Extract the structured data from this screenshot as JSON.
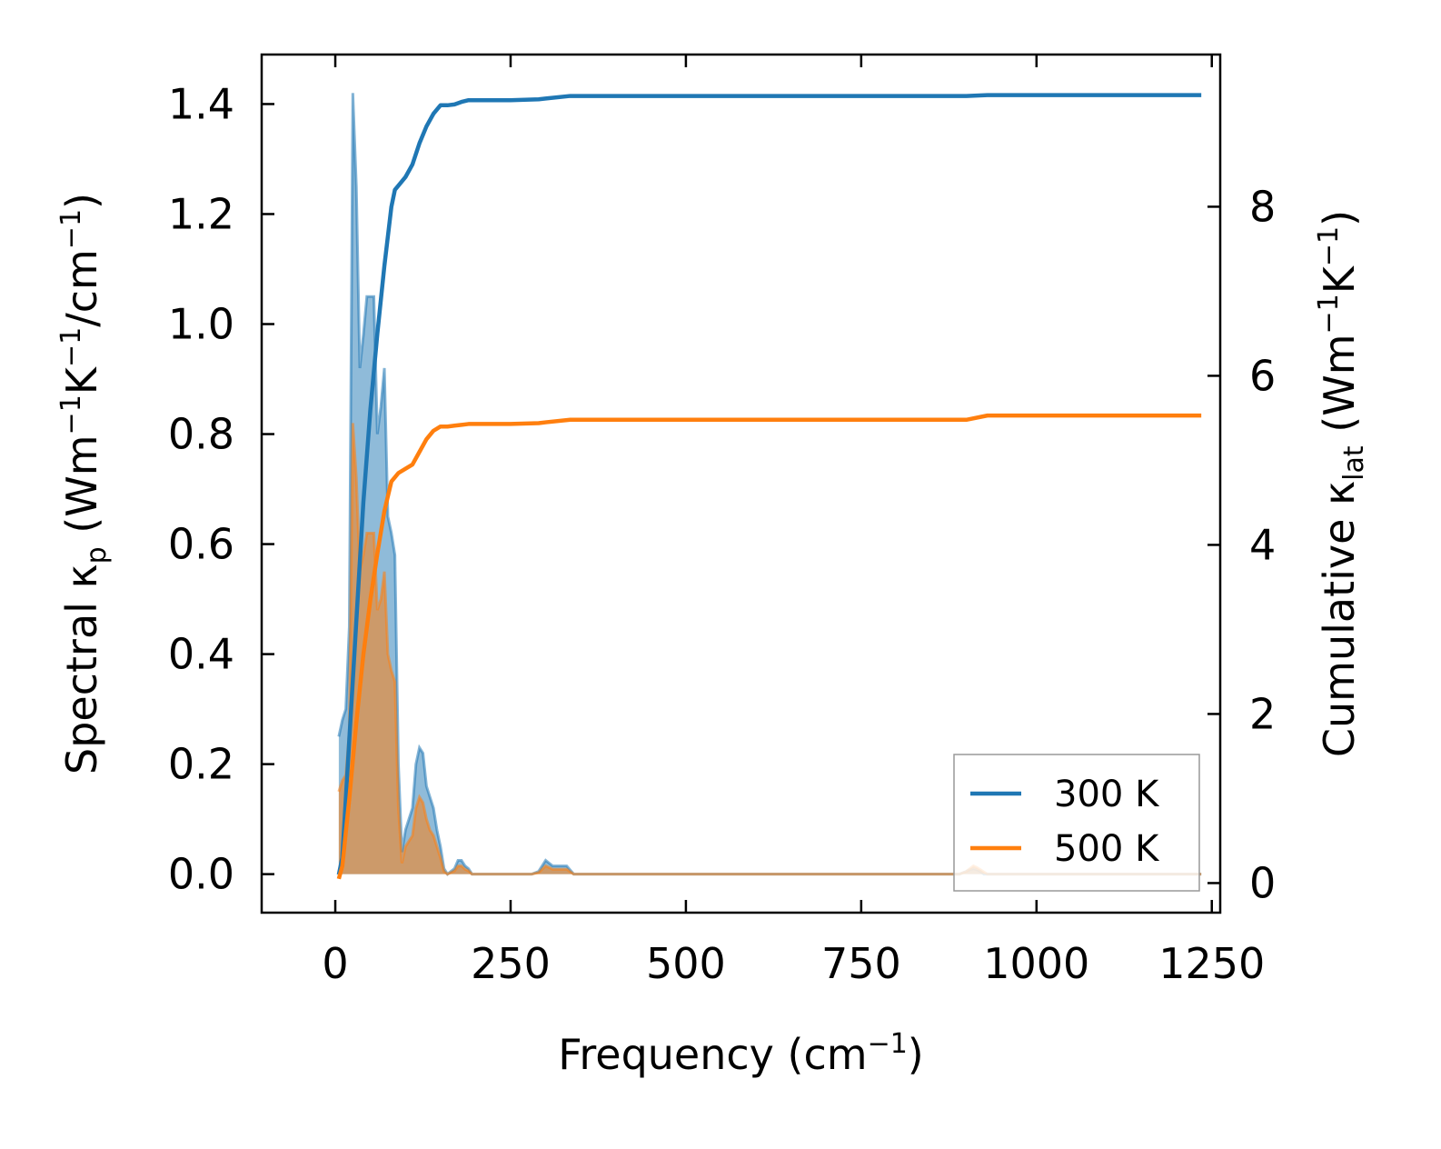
{
  "chart_data": {
    "type": "line",
    "x_axis": {
      "label": "Frequency (cm",
      "label_sup": "−1",
      "label_tail": ")",
      "lim": [
        -105,
        1262
      ],
      "ticks": [
        0,
        250,
        500,
        750,
        1000,
        1250
      ],
      "tick_labels": [
        "0",
        "250",
        "500",
        "750",
        "1000",
        "1250"
      ]
    },
    "y_left": {
      "label_parts": [
        "Spectral κ",
        "p",
        " (Wm",
        "−1",
        "K",
        "−1",
        "/cm",
        "−1",
        ")"
      ],
      "lim": [
        -0.07,
        1.49
      ],
      "ticks": [
        0.0,
        0.2,
        0.4,
        0.6,
        0.8,
        1.0,
        1.2,
        1.4
      ],
      "tick_labels": [
        "0.0",
        "0.2",
        "0.4",
        "0.6",
        "0.8",
        "1.0",
        "1.2",
        "1.4"
      ]
    },
    "y_right": {
      "label_parts": [
        "Cumulative κ",
        "lat",
        " (Wm",
        "−1",
        "K",
        "−1",
        ")"
      ],
      "lim": [
        -0.35,
        9.8
      ],
      "ticks": [
        0,
        2,
        4,
        6,
        8
      ],
      "tick_labels": [
        "0",
        "2",
        "4",
        "6",
        "8"
      ]
    },
    "grid": false,
    "legend_position": "bottom-right",
    "series": [
      {
        "name": "300 K",
        "color": "#1f77b4",
        "spectral": {
          "x": [
            5,
            10,
            15,
            20,
            25,
            30,
            35,
            40,
            45,
            50,
            55,
            60,
            65,
            70,
            75,
            80,
            85,
            90,
            95,
            100,
            105,
            110,
            115,
            120,
            125,
            130,
            135,
            140,
            145,
            150,
            155,
            160,
            165,
            170,
            175,
            180,
            185,
            190,
            195,
            200,
            250,
            280,
            290,
            295,
            300,
            305,
            310,
            320,
            330,
            340,
            350,
            400,
            500,
            600,
            700,
            800,
            890,
            900,
            905,
            910,
            915,
            920,
            925,
            930,
            935,
            940,
            1000,
            1100,
            1200,
            1235
          ],
          "y": [
            0.25,
            0.28,
            0.3,
            0.45,
            1.42,
            1.25,
            0.92,
            0.98,
            1.05,
            1.05,
            1.05,
            0.8,
            0.85,
            0.92,
            0.65,
            0.62,
            0.58,
            0.2,
            0.04,
            0.08,
            0.1,
            0.12,
            0.2,
            0.23,
            0.22,
            0.16,
            0.14,
            0.12,
            0.08,
            0.05,
            0.01,
            0.0,
            0.005,
            0.01,
            0.025,
            0.025,
            0.015,
            0.01,
            0.0,
            0.0,
            0.0,
            0.0,
            0.005,
            0.015,
            0.025,
            0.02,
            0.015,
            0.015,
            0.015,
            0.0,
            0.0,
            0.0,
            0.0,
            0.0,
            0.0,
            0.0,
            0.0,
            0.005,
            0.008,
            0.01,
            0.008,
            0.005,
            0.0,
            0.0,
            0.0,
            0.0,
            0.0,
            0.0,
            0.0,
            0.0
          ]
        },
        "cumulative": {
          "x": [
            5,
            10,
            20,
            30,
            40,
            50,
            60,
            70,
            80,
            85,
            90,
            100,
            110,
            120,
            130,
            140,
            150,
            160,
            170,
            180,
            190,
            200,
            250,
            290,
            300,
            335,
            900,
            930,
            1235
          ],
          "y": [
            0.1,
            0.3,
            1.7,
            3.1,
            4.5,
            5.6,
            6.5,
            7.3,
            8.0,
            8.2,
            8.25,
            8.35,
            8.5,
            8.75,
            8.95,
            9.1,
            9.2,
            9.2,
            9.21,
            9.24,
            9.26,
            9.26,
            9.26,
            9.27,
            9.28,
            9.31,
            9.31,
            9.32,
            9.32
          ]
        }
      },
      {
        "name": "500 K",
        "color": "#ff7f0e",
        "spectral": {
          "x": [
            5,
            10,
            15,
            20,
            25,
            30,
            35,
            40,
            45,
            50,
            55,
            60,
            65,
            70,
            75,
            80,
            85,
            90,
            95,
            100,
            105,
            110,
            115,
            120,
            125,
            130,
            135,
            140,
            145,
            150,
            155,
            160,
            165,
            170,
            175,
            180,
            185,
            190,
            195,
            200,
            250,
            280,
            290,
            295,
            300,
            305,
            310,
            320,
            330,
            340,
            350,
            400,
            500,
            600,
            700,
            800,
            890,
            900,
            905,
            910,
            915,
            920,
            925,
            930,
            935,
            940,
            1000,
            1100,
            1200,
            1235
          ],
          "y": [
            0.15,
            0.17,
            0.18,
            0.26,
            0.82,
            0.72,
            0.55,
            0.58,
            0.62,
            0.62,
            0.62,
            0.48,
            0.5,
            0.55,
            0.4,
            0.37,
            0.35,
            0.12,
            0.02,
            0.05,
            0.06,
            0.07,
            0.12,
            0.14,
            0.13,
            0.1,
            0.08,
            0.07,
            0.05,
            0.03,
            0.005,
            0.0,
            0.003,
            0.006,
            0.015,
            0.015,
            0.009,
            0.006,
            0.0,
            0.0,
            0.0,
            0.0,
            0.003,
            0.009,
            0.015,
            0.012,
            0.009,
            0.009,
            0.009,
            0.0,
            0.0,
            0.0,
            0.0,
            0.0,
            0.0,
            0.0,
            0.0,
            0.005,
            0.01,
            0.015,
            0.012,
            0.008,
            0.004,
            0.0,
            0.0,
            0.0,
            0.0,
            0.0,
            0.0,
            0.0
          ]
        },
        "cumulative": {
          "x": [
            5,
            10,
            20,
            30,
            40,
            50,
            60,
            70,
            80,
            85,
            90,
            100,
            110,
            120,
            130,
            140,
            150,
            160,
            170,
            180,
            190,
            200,
            250,
            290,
            300,
            335,
            900,
            930,
            1235
          ],
          "y": [
            0.05,
            0.2,
            1.0,
            1.9,
            2.7,
            3.35,
            3.9,
            4.4,
            4.75,
            4.8,
            4.85,
            4.9,
            4.95,
            5.1,
            5.25,
            5.35,
            5.4,
            5.4,
            5.41,
            5.42,
            5.43,
            5.43,
            5.43,
            5.44,
            5.45,
            5.48,
            5.48,
            5.53,
            5.53
          ]
        }
      }
    ]
  }
}
